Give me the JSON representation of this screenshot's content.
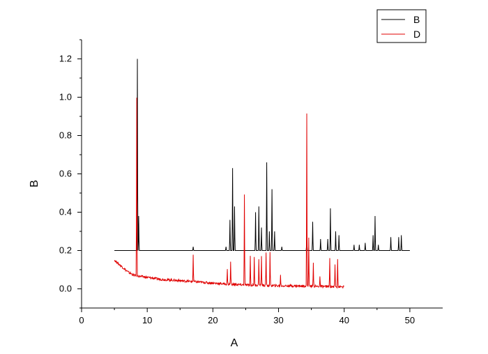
{
  "chart_data": {
    "type": "line",
    "xlabel": "A",
    "ylabel": "B",
    "xlim": [
      0,
      55
    ],
    "ylim": [
      -0.1,
      1.3
    ],
    "x_ticks": [
      0,
      10,
      20,
      30,
      40,
      50
    ],
    "y_ticks": [
      0.0,
      0.2,
      0.4,
      0.6,
      0.8,
      1.0,
      1.2
    ],
    "x_tick_labels": [
      "0",
      "10",
      "20",
      "30",
      "40",
      "50"
    ],
    "y_tick_labels": [
      "0.0",
      "0.2",
      "0.4",
      "0.6",
      "0.8",
      "1.0",
      "1.2"
    ],
    "grid": false,
    "legend_position": "top-right",
    "series": [
      {
        "name": "B",
        "color": "#000000",
        "baseline": 0.2,
        "x_range": [
          5,
          50
        ],
        "baseline_points": [
          [
            5,
            0.2
          ],
          [
            50,
            0.2
          ]
        ],
        "peaks": [
          [
            8.5,
            1.2
          ],
          [
            8.7,
            0.38
          ],
          [
            17.0,
            0.22
          ],
          [
            22.0,
            0.22
          ],
          [
            22.6,
            0.36
          ],
          [
            23.0,
            0.63
          ],
          [
            23.3,
            0.43
          ],
          [
            26.5,
            0.4
          ],
          [
            27.0,
            0.43
          ],
          [
            27.4,
            0.32
          ],
          [
            28.2,
            0.66
          ],
          [
            28.6,
            0.3
          ],
          [
            29.0,
            0.52
          ],
          [
            29.4,
            0.3
          ],
          [
            30.5,
            0.22
          ],
          [
            34.3,
            0.27
          ],
          [
            35.2,
            0.35
          ],
          [
            36.4,
            0.26
          ],
          [
            37.5,
            0.26
          ],
          [
            37.9,
            0.42
          ],
          [
            38.7,
            0.3
          ],
          [
            39.2,
            0.28
          ],
          [
            41.5,
            0.23
          ],
          [
            42.3,
            0.23
          ],
          [
            43.2,
            0.24
          ],
          [
            44.4,
            0.28
          ],
          [
            44.7,
            0.38
          ],
          [
            45.2,
            0.23
          ],
          [
            47.1,
            0.27
          ],
          [
            48.3,
            0.27
          ],
          [
            48.7,
            0.28
          ]
        ]
      },
      {
        "name": "D",
        "color": "#e00000",
        "x_range": [
          5,
          40
        ],
        "baseline_points": [
          [
            5,
            0.15
          ],
          [
            6,
            0.12
          ],
          [
            7,
            0.09
          ],
          [
            8,
            0.07
          ],
          [
            9,
            0.065
          ],
          [
            10,
            0.06
          ],
          [
            12,
            0.05
          ],
          [
            14,
            0.045
          ],
          [
            16,
            0.04
          ],
          [
            18,
            0.035
          ],
          [
            20,
            0.03
          ],
          [
            22,
            0.025
          ],
          [
            25,
            0.02
          ],
          [
            28,
            0.018
          ],
          [
            30,
            0.016
          ],
          [
            34,
            0.015
          ],
          [
            36,
            0.013
          ],
          [
            38,
            0.012
          ],
          [
            40,
            0.01
          ]
        ],
        "peaks": [
          [
            8.4,
            1.0
          ],
          [
            17.0,
            0.18
          ],
          [
            22.2,
            0.1
          ],
          [
            22.7,
            0.14
          ],
          [
            24.8,
            0.49
          ],
          [
            25.7,
            0.17
          ],
          [
            26.3,
            0.17
          ],
          [
            27.0,
            0.16
          ],
          [
            27.4,
            0.17
          ],
          [
            28.1,
            0.19
          ],
          [
            28.7,
            0.19
          ],
          [
            30.3,
            0.07
          ],
          [
            34.3,
            0.91
          ],
          [
            34.6,
            0.27
          ],
          [
            35.3,
            0.14
          ],
          [
            36.3,
            0.06
          ],
          [
            37.8,
            0.16
          ],
          [
            38.6,
            0.13
          ],
          [
            39.0,
            0.16
          ]
        ]
      }
    ]
  }
}
